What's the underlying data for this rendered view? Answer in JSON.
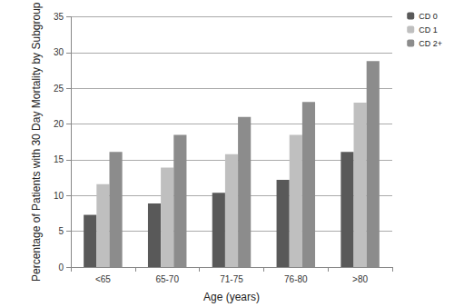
{
  "chart_data": {
    "type": "bar",
    "categories": [
      "<65",
      "65-70",
      "71-75",
      "76-80",
      ">80"
    ],
    "series": [
      {
        "name": "CD 0",
        "color": "#595959",
        "values": [
          7.3,
          8.9,
          10.4,
          12.2,
          16.1
        ]
      },
      {
        "name": "CD 1",
        "color": "#bfbfbf",
        "values": [
          11.6,
          13.9,
          15.8,
          18.5,
          23.0
        ]
      },
      {
        "name": "CD 2+",
        "color": "#8c8c8c",
        "values": [
          16.1,
          18.5,
          21.0,
          23.1,
          28.8
        ]
      }
    ],
    "x_label": "Age (years)",
    "y_label": "Percentage of Patients with 30 Day Mortality by Subgroup",
    "ylim": [
      0,
      35
    ],
    "yticks": [
      0,
      5,
      10,
      15,
      20,
      25,
      30,
      35
    ],
    "grid": true,
    "legend": "top-right"
  }
}
